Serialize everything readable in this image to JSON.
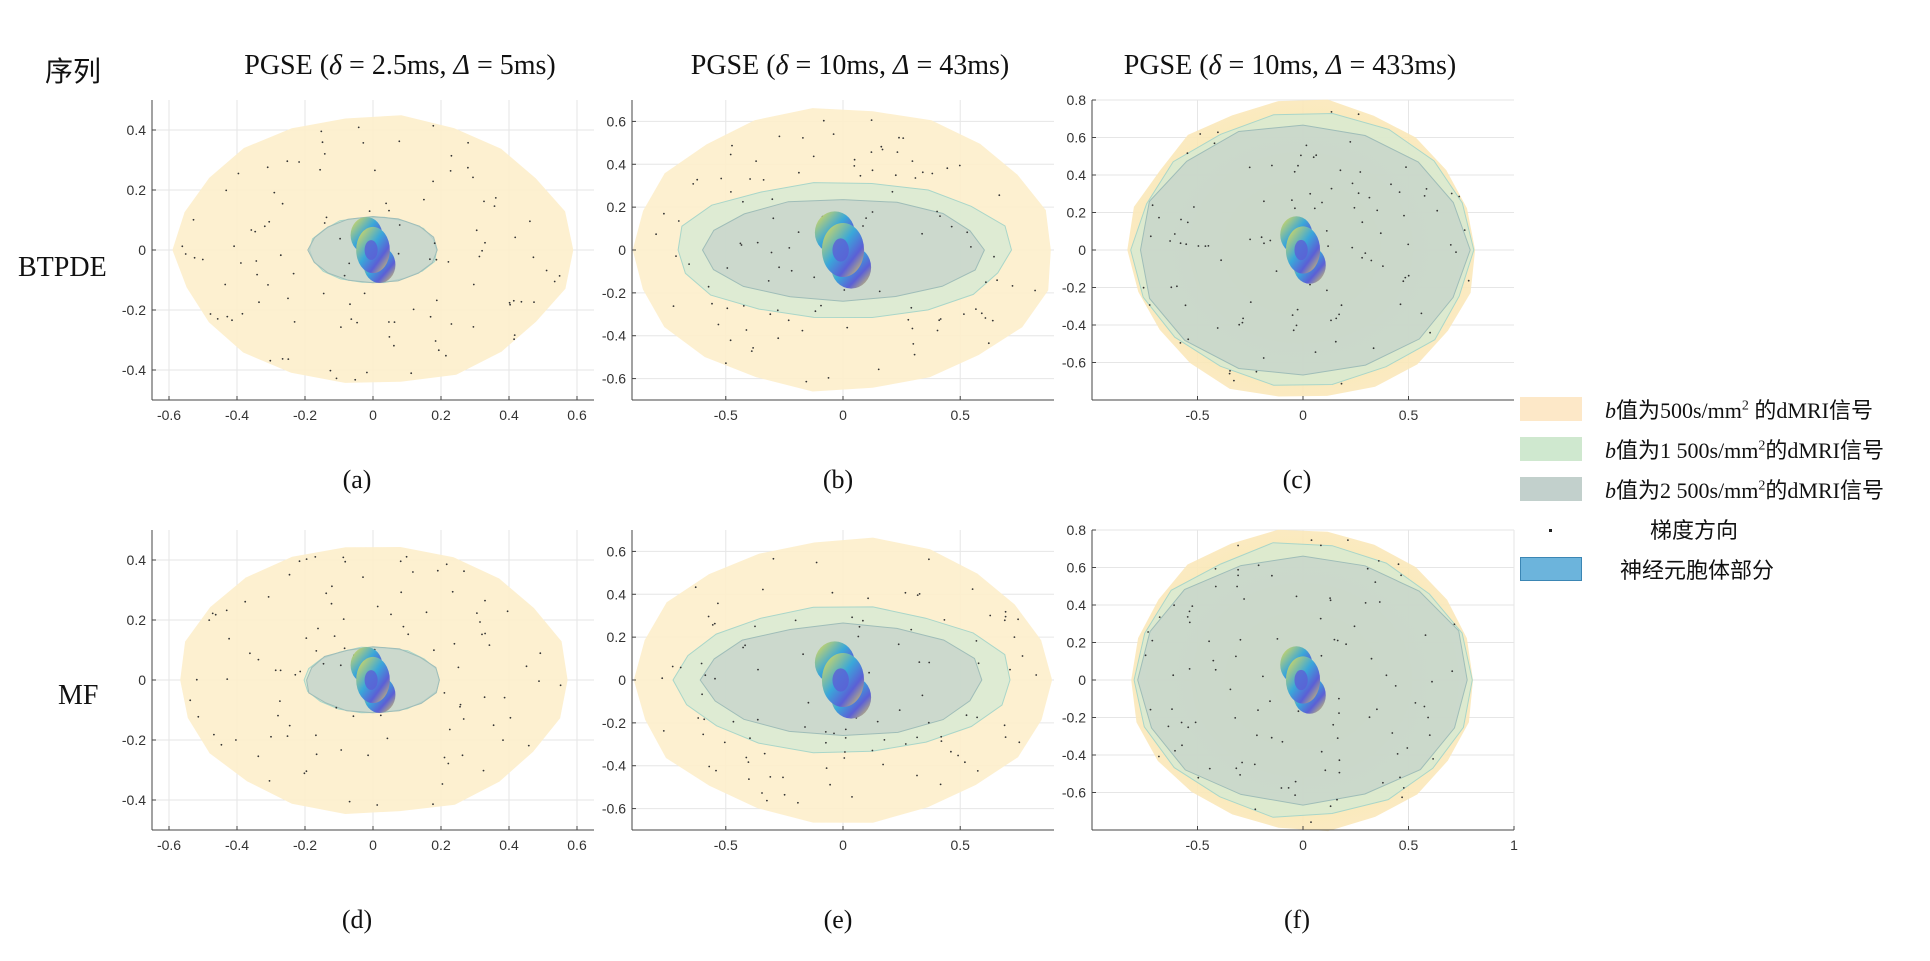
{
  "header": {
    "row_header": "序列",
    "columns": [
      {
        "prefix": "PGSE (",
        "delta_sym": "δ",
        "delta_val": " = 2.5ms, ",
        "Delta_sym": "Δ",
        "Delta_val": " = 5ms)"
      },
      {
        "prefix": "PGSE (",
        "delta_sym": "δ",
        "delta_val": " = 10ms, ",
        "Delta_sym": "Δ",
        "Delta_val": " = 43ms)"
      },
      {
        "prefix": "PGSE (",
        "delta_sym": "δ",
        "delta_val": " = 10ms, ",
        "Delta_sym": "Δ",
        "Delta_val": " = 433ms)"
      }
    ]
  },
  "rows": [
    "BTPDE",
    "MF"
  ],
  "panel_labels": [
    "(a)",
    "(b)",
    "(c)",
    "(d)",
    "(e)",
    "(f)"
  ],
  "legend": {
    "items": [
      {
        "b": "b",
        "text": "值为500s/mm",
        "sup": "2",
        "tail": " 的dMRI信号",
        "color": "#fde8c8"
      },
      {
        "b": "b",
        "text": "值为1 500s/mm",
        "sup": "2",
        "tail": "的dMRI信号",
        "color": "#cfe8cf"
      },
      {
        "b": "b",
        "text": "值为2 500s/mm",
        "sup": "2",
        "tail": "的dMRI信号",
        "color": "#c2d0cc"
      },
      {
        "b": "",
        "text": "梯度方向",
        "sup": "",
        "tail": "",
        "color": "#222222"
      },
      {
        "b": "",
        "text": "神经元胞体部分",
        "sup": "",
        "tail": "",
        "color": "#6cb4dc"
      }
    ]
  },
  "colors": {
    "b500": "#fdeecb",
    "b1500": "#d3ead4",
    "b2500": "#bfcdc9",
    "neuron_a": "#f2e14a",
    "neuron_b": "#3aa7d9",
    "neuron_c": "#5b5fd6",
    "grid": "#e6e6e6",
    "axis": "#444444"
  },
  "chart_data": [
    {
      "type": "scatter",
      "panel": "(a)",
      "xlim": [
        -0.65,
        0.65
      ],
      "ylim": [
        -0.5,
        0.5
      ],
      "xticks": [
        -0.6,
        -0.4,
        -0.2,
        0,
        0.2,
        0.4,
        0.6
      ],
      "yticks": [
        -0.4,
        -0.2,
        0,
        0.2,
        0.4
      ],
      "xtick_labels": [
        "-0.6",
        "-0.4",
        "-0.2",
        "0",
        "0.2",
        "0.4",
        "0.6"
      ],
      "ytick_labels": [
        "-0.4",
        "-0.2",
        "0",
        "0.2",
        "0.4"
      ],
      "surfaces": {
        "b500": {
          "rx": 0.58,
          "ry": 0.45
        },
        "b1500": {
          "rx": 0.19,
          "ry": 0.11
        },
        "b2500": {
          "rx": 0.19,
          "ry": 0.11
        }
      },
      "neuron": {
        "rx": 0.055,
        "ry": 0.11
      },
      "grid": true
    },
    {
      "type": "scatter",
      "panel": "(b)",
      "xlim": [
        -0.9,
        0.9
      ],
      "ylim": [
        -0.7,
        0.7
      ],
      "xticks": [
        -0.5,
        0,
        0.5
      ],
      "yticks": [
        -0.6,
        -0.4,
        -0.2,
        0,
        0.2,
        0.4,
        0.6
      ],
      "xtick_labels": [
        "-0.5",
        "0",
        "0.5"
      ],
      "ytick_labels": [
        "-0.6",
        "-0.4",
        "-0.2",
        "0",
        "0.2",
        "0.4",
        "0.6"
      ],
      "surfaces": {
        "b500": {
          "rx": 0.9,
          "ry": 0.66
        },
        "b1500": {
          "rx": 0.72,
          "ry": 0.32
        },
        "b2500": {
          "rx": 0.6,
          "ry": 0.24
        }
      },
      "neuron": {
        "rx": 0.1,
        "ry": 0.18
      },
      "grid": true
    },
    {
      "type": "scatter",
      "panel": "(c)",
      "xlim": [
        -1.0,
        1.0
      ],
      "ylim": [
        -0.8,
        0.8
      ],
      "xticks": [
        -0.5,
        0,
        0.5
      ],
      "yticks": [
        -0.6,
        -0.4,
        -0.2,
        0,
        0.2,
        0.4,
        0.6,
        0.8
      ],
      "xtick_labels": [
        "-0.5",
        "0",
        "0.5"
      ],
      "ytick_labels": [
        "-0.6",
        "-0.4",
        "-0.2",
        "0",
        "0.2",
        "0.4",
        "0.6",
        "0.8"
      ],
      "surfaces": {
        "b500": {
          "rx": 0.82,
          "ry": 0.8
        },
        "b1500": {
          "rx": 0.8,
          "ry": 0.73
        },
        "b2500": {
          "rx": 0.78,
          "ry": 0.67
        }
      },
      "neuron": {
        "rx": 0.09,
        "ry": 0.18
      },
      "grid": true
    },
    {
      "type": "scatter",
      "panel": "(d)",
      "xlim": [
        -0.65,
        0.65
      ],
      "ylim": [
        -0.5,
        0.5
      ],
      "xticks": [
        -0.6,
        -0.4,
        -0.2,
        0,
        0.2,
        0.4,
        0.6
      ],
      "yticks": [
        -0.4,
        -0.2,
        0,
        0.2,
        0.4
      ],
      "xtick_labels": [
        "-0.6",
        "-0.4",
        "-0.2",
        "0",
        "0.2",
        "0.4",
        "0.6"
      ],
      "ytick_labels": [
        "-0.4",
        "-0.2",
        "0",
        "0.2",
        "0.4"
      ],
      "surfaces": {
        "b500": {
          "rx": 0.57,
          "ry": 0.45
        },
        "b1500": {
          "rx": 0.2,
          "ry": 0.11
        },
        "b2500": {
          "rx": 0.2,
          "ry": 0.11
        }
      },
      "neuron": {
        "rx": 0.055,
        "ry": 0.11
      },
      "grid": true
    },
    {
      "type": "scatter",
      "panel": "(e)",
      "xlim": [
        -0.9,
        0.9
      ],
      "ylim": [
        -0.7,
        0.7
      ],
      "xticks": [
        -0.5,
        0,
        0.5
      ],
      "yticks": [
        -0.6,
        -0.4,
        -0.2,
        0,
        0.2,
        0.4,
        0.6
      ],
      "xtick_labels": [
        "-0.5",
        "0",
        "0.5"
      ],
      "ytick_labels": [
        "-0.6",
        "-0.4",
        "-0.2",
        "0",
        "0.2",
        "0.4",
        "0.6"
      ],
      "surfaces": {
        "b500": {
          "rx": 0.88,
          "ry": 0.66
        },
        "b1500": {
          "rx": 0.72,
          "ry": 0.34
        },
        "b2500": {
          "rx": 0.6,
          "ry": 0.26
        }
      },
      "neuron": {
        "rx": 0.1,
        "ry": 0.18
      },
      "grid": true
    },
    {
      "type": "scatter",
      "panel": "(f)",
      "xlim": [
        -1.0,
        1.0
      ],
      "ylim": [
        -0.8,
        0.8
      ],
      "xticks": [
        -0.5,
        0,
        0.5,
        1
      ],
      "yticks": [
        -0.6,
        -0.4,
        -0.2,
        0,
        0.2,
        0.4,
        0.6,
        0.8
      ],
      "xtick_labels": [
        "-0.5",
        "0",
        "0.5",
        "1"
      ],
      "ytick_labels": [
        "-0.6",
        "-0.4",
        "-0.2",
        "0",
        "0.2",
        "0.4",
        "0.6",
        "0.8"
      ],
      "surfaces": {
        "b500": {
          "rx": 0.82,
          "ry": 0.8
        },
        "b1500": {
          "rx": 0.8,
          "ry": 0.73
        },
        "b2500": {
          "rx": 0.78,
          "ry": 0.67
        }
      },
      "neuron": {
        "rx": 0.09,
        "ry": 0.18
      },
      "grid": true
    }
  ]
}
